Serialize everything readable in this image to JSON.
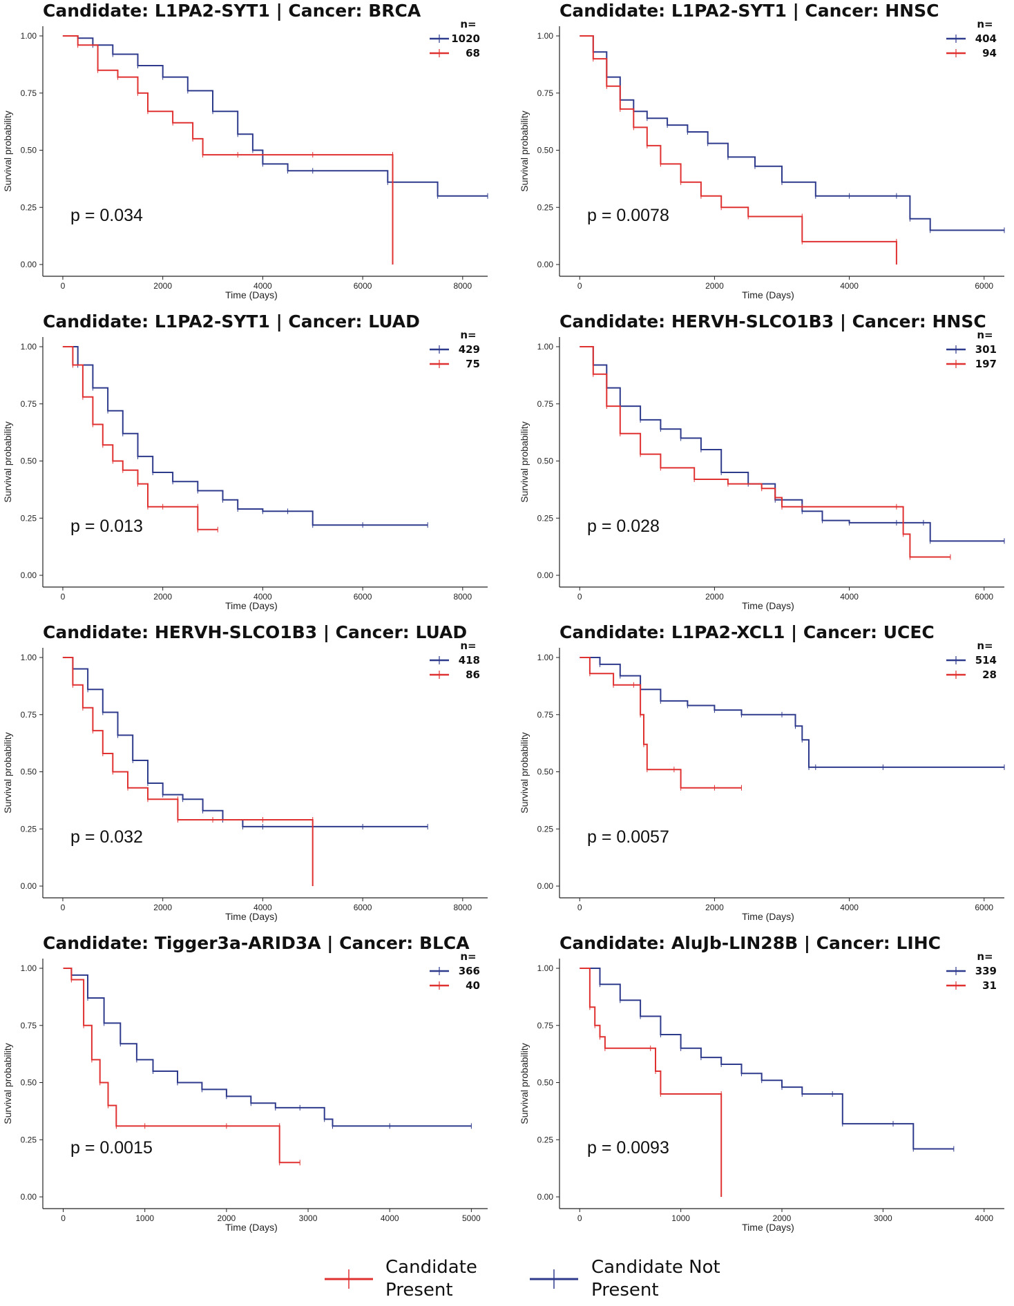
{
  "colors": {
    "present": "#e03131",
    "not_present": "#2e3a8c",
    "axis": "#222222"
  },
  "figure_legend": {
    "present": {
      "line1": "Candidate",
      "line2": "Present"
    },
    "not_present": {
      "line1": "Candidate Not",
      "line2": "Present"
    }
  },
  "chart_data": [
    {
      "type": "line",
      "title": "Candidate: L1PA2-SYT1 | Cancer: BRCA",
      "xlabel": "Time (Days)",
      "ylabel": "Survival probability",
      "xlim": [
        -400,
        8500
      ],
      "ylim": [
        0,
        1
      ],
      "xticks": [
        0,
        2000,
        4000,
        6000,
        8000
      ],
      "yticks": [
        "0.00",
        "0.25",
        "0.50",
        "0.75",
        "1.00"
      ],
      "pvalue": "p = 0.034",
      "legend": {
        "header": "n=",
        "entries": [
          {
            "series": "Candidate Not Present",
            "n": "1020"
          },
          {
            "series": "Candidate Present",
            "n": "68"
          }
        ]
      },
      "series": [
        {
          "name": "Candidate Not Present",
          "color": "#2e3a8c",
          "x": [
            0,
            300,
            600,
            1000,
            1500,
            2000,
            2500,
            3000,
            3500,
            3800,
            4000,
            4500,
            5000,
            6500,
            7500,
            8500
          ],
          "y": [
            1.0,
            0.99,
            0.96,
            0.92,
            0.87,
            0.82,
            0.76,
            0.67,
            0.57,
            0.5,
            0.44,
            0.41,
            0.41,
            0.36,
            0.3,
            0.3
          ]
        },
        {
          "name": "Candidate Present",
          "color": "#e03131",
          "x": [
            0,
            300,
            700,
            1100,
            1500,
            1700,
            2200,
            2600,
            2800,
            3500,
            5000,
            6600,
            6600
          ],
          "y": [
            1.0,
            0.96,
            0.85,
            0.82,
            0.75,
            0.67,
            0.62,
            0.55,
            0.48,
            0.48,
            0.48,
            0.48,
            0.0
          ]
        }
      ]
    },
    {
      "type": "line",
      "title": "Candidate: L1PA2-SYT1 | Cancer: HNSC",
      "xlabel": "Time (Days)",
      "ylabel": "Survival probability",
      "xlim": [
        -300,
        6300
      ],
      "ylim": [
        0,
        1
      ],
      "xticks": [
        0,
        2000,
        4000,
        6000
      ],
      "yticks": [
        "0.00",
        "0.25",
        "0.50",
        "0.75",
        "1.00"
      ],
      "pvalue": "p = 0.0078",
      "legend": {
        "header": "n=",
        "entries": [
          {
            "series": "Candidate Not Present",
            "n": "404"
          },
          {
            "series": "Candidate Present",
            "n": "94"
          }
        ]
      },
      "series": [
        {
          "name": "Candidate Not Present",
          "color": "#2e3a8c",
          "x": [
            0,
            200,
            400,
            600,
            800,
            1000,
            1300,
            1600,
            1900,
            2200,
            2600,
            3000,
            3500,
            4000,
            4700,
            4900,
            5200,
            6300
          ],
          "y": [
            1.0,
            0.93,
            0.82,
            0.72,
            0.67,
            0.64,
            0.61,
            0.58,
            0.53,
            0.47,
            0.43,
            0.36,
            0.3,
            0.3,
            0.3,
            0.2,
            0.15,
            0.15
          ]
        },
        {
          "name": "Candidate Present",
          "color": "#e03131",
          "x": [
            0,
            200,
            400,
            600,
            800,
            1000,
            1200,
            1500,
            1800,
            2100,
            2500,
            3300,
            3300,
            4700,
            4700
          ],
          "y": [
            1.0,
            0.9,
            0.78,
            0.68,
            0.6,
            0.52,
            0.44,
            0.36,
            0.3,
            0.25,
            0.21,
            0.21,
            0.1,
            0.1,
            0.0
          ]
        }
      ]
    },
    {
      "type": "line",
      "title": "Candidate: L1PA2-SYT1 | Cancer: LUAD",
      "xlabel": "Time (Days)",
      "ylabel": "Survival probability",
      "xlim": [
        -400,
        8500
      ],
      "ylim": [
        0,
        1
      ],
      "xticks": [
        0,
        2000,
        4000,
        6000,
        8000
      ],
      "yticks": [
        "0.00",
        "0.25",
        "0.50",
        "0.75",
        "1.00"
      ],
      "pvalue": "p = 0.013",
      "legend": {
        "header": "n=",
        "entries": [
          {
            "series": "Candidate Not Present",
            "n": "429"
          },
          {
            "series": "Candidate Present",
            "n": "75"
          }
        ]
      },
      "series": [
        {
          "name": "Candidate Not Present",
          "color": "#2e3a8c",
          "x": [
            0,
            300,
            600,
            900,
            1200,
            1500,
            1800,
            2200,
            2700,
            3200,
            3500,
            4000,
            4500,
            5000,
            6000,
            7300
          ],
          "y": [
            1.0,
            0.92,
            0.82,
            0.72,
            0.62,
            0.52,
            0.45,
            0.41,
            0.37,
            0.33,
            0.29,
            0.28,
            0.28,
            0.22,
            0.22,
            0.22
          ]
        },
        {
          "name": "Candidate Present",
          "color": "#e03131",
          "x": [
            0,
            200,
            400,
            600,
            800,
            1000,
            1200,
            1500,
            1700,
            2000,
            2700,
            2700,
            3100
          ],
          "y": [
            1.0,
            0.92,
            0.78,
            0.66,
            0.57,
            0.5,
            0.46,
            0.4,
            0.3,
            0.3,
            0.3,
            0.2,
            0.2
          ]
        }
      ]
    },
    {
      "type": "line",
      "title": "Candidate: HERVH-SLCO1B3 | Cancer: HNSC",
      "xlabel": "Time (Days)",
      "ylabel": "Survival probability",
      "xlim": [
        -300,
        6300
      ],
      "ylim": [
        0,
        1
      ],
      "xticks": [
        0,
        2000,
        4000,
        6000
      ],
      "yticks": [
        "0.00",
        "0.25",
        "0.50",
        "0.75",
        "1.00"
      ],
      "pvalue": "p = 0.028",
      "legend": {
        "header": "n=",
        "entries": [
          {
            "series": "Candidate Not Present",
            "n": "301"
          },
          {
            "series": "Candidate Present",
            "n": "197"
          }
        ]
      },
      "series": [
        {
          "name": "Candidate Not Present",
          "color": "#2e3a8c",
          "x": [
            0,
            200,
            400,
            600,
            900,
            1200,
            1500,
            1800,
            2100,
            2500,
            2900,
            3300,
            3600,
            4000,
            4700,
            5100,
            5200,
            6300
          ],
          "y": [
            1.0,
            0.92,
            0.82,
            0.74,
            0.68,
            0.64,
            0.6,
            0.55,
            0.45,
            0.4,
            0.33,
            0.28,
            0.24,
            0.23,
            0.23,
            0.23,
            0.15,
            0.15
          ]
        },
        {
          "name": "Candidate Present",
          "color": "#e03131",
          "x": [
            0,
            200,
            400,
            600,
            900,
            1200,
            1700,
            2200,
            2700,
            2900,
            3000,
            3300,
            4700,
            4800,
            4900,
            5500
          ],
          "y": [
            1.0,
            0.88,
            0.74,
            0.62,
            0.53,
            0.47,
            0.42,
            0.4,
            0.38,
            0.34,
            0.3,
            0.3,
            0.3,
            0.18,
            0.08,
            0.08
          ]
        }
      ]
    },
    {
      "type": "line",
      "title": "Candidate: HERVH-SLCO1B3 | Cancer: LUAD",
      "xlabel": "Time (Days)",
      "ylabel": "Survival probability",
      "xlim": [
        -400,
        8500
      ],
      "ylim": [
        0,
        1
      ],
      "xticks": [
        0,
        2000,
        4000,
        6000,
        8000
      ],
      "yticks": [
        "0.00",
        "0.25",
        "0.50",
        "0.75",
        "1.00"
      ],
      "pvalue": "p = 0.032",
      "legend": {
        "header": "n=",
        "entries": [
          {
            "series": "Candidate Not Present",
            "n": "418"
          },
          {
            "series": "Candidate Present",
            "n": "86"
          }
        ]
      },
      "series": [
        {
          "name": "Candidate Not Present",
          "color": "#2e3a8c",
          "x": [
            0,
            200,
            500,
            800,
            1100,
            1400,
            1700,
            2000,
            2400,
            2800,
            3200,
            3600,
            4000,
            5000,
            6000,
            7300
          ],
          "y": [
            1.0,
            0.95,
            0.86,
            0.76,
            0.66,
            0.55,
            0.45,
            0.4,
            0.38,
            0.33,
            0.29,
            0.26,
            0.26,
            0.26,
            0.26,
            0.26
          ]
        },
        {
          "name": "Candidate Present",
          "color": "#e03131",
          "x": [
            0,
            200,
            400,
            600,
            800,
            1000,
            1300,
            1700,
            2300,
            2300,
            3000,
            4000,
            5000,
            5000
          ],
          "y": [
            1.0,
            0.88,
            0.78,
            0.68,
            0.58,
            0.5,
            0.43,
            0.38,
            0.38,
            0.29,
            0.29,
            0.29,
            0.29,
            0.0
          ]
        }
      ]
    },
    {
      "type": "line",
      "title": "Candidate: L1PA2-XCL1 | Cancer: UCEC",
      "xlabel": "Time (Days)",
      "ylabel": "Survival probability",
      "xlim": [
        -300,
        6300
      ],
      "ylim": [
        0,
        1
      ],
      "xticks": [
        0,
        2000,
        4000,
        6000
      ],
      "yticks": [
        "0.00",
        "0.25",
        "0.50",
        "0.75",
        "1.00"
      ],
      "pvalue": "p = 0.0057",
      "legend": {
        "header": "n=",
        "entries": [
          {
            "series": "Candidate Not Present",
            "n": "514"
          },
          {
            "series": "Candidate Present",
            "n": "28"
          }
        ]
      },
      "series": [
        {
          "name": "Candidate Not Present",
          "color": "#2e3a8c",
          "x": [
            0,
            300,
            600,
            900,
            1200,
            1600,
            2000,
            2400,
            3000,
            3200,
            3300,
            3400,
            3500,
            4500,
            6300
          ],
          "y": [
            1.0,
            0.97,
            0.92,
            0.86,
            0.81,
            0.79,
            0.77,
            0.75,
            0.75,
            0.7,
            0.64,
            0.52,
            0.52,
            0.52,
            0.52
          ]
        },
        {
          "name": "Candidate Present",
          "color": "#e03131",
          "x": [
            0,
            150,
            500,
            800,
            900,
            950,
            1000,
            1400,
            1500,
            2000,
            2400
          ],
          "y": [
            1.0,
            0.93,
            0.88,
            0.88,
            0.75,
            0.62,
            0.51,
            0.51,
            0.43,
            0.43,
            0.43
          ]
        }
      ]
    },
    {
      "type": "line",
      "title": "Candidate: Tigger3a-ARID3A | Cancer: BLCA",
      "xlabel": "Time (Days)",
      "ylabel": "Survival probability",
      "xlim": [
        -250,
        5200
      ],
      "ylim": [
        0,
        1
      ],
      "xticks": [
        0,
        1000,
        2000,
        3000,
        4000,
        5000
      ],
      "yticks": [
        "0.00",
        "0.25",
        "0.50",
        "0.75",
        "1.00"
      ],
      "pvalue": "p = 0.0015",
      "legend": {
        "header": "n=",
        "entries": [
          {
            "series": "Candidate Not Present",
            "n": "366"
          },
          {
            "series": "Candidate Present",
            "n": "40"
          }
        ]
      },
      "series": [
        {
          "name": "Candidate Not Present",
          "color": "#2e3a8c",
          "x": [
            0,
            100,
            300,
            500,
            700,
            900,
            1100,
            1400,
            1700,
            2000,
            2300,
            2600,
            2900,
            3200,
            3300,
            4000,
            5000
          ],
          "y": [
            1.0,
            0.97,
            0.87,
            0.76,
            0.67,
            0.6,
            0.55,
            0.5,
            0.47,
            0.44,
            0.41,
            0.39,
            0.39,
            0.34,
            0.31,
            0.31,
            0.31
          ]
        },
        {
          "name": "Candidate Present",
          "color": "#e03131",
          "x": [
            0,
            100,
            250,
            350,
            450,
            550,
            650,
            1000,
            2000,
            2650,
            2650,
            2900
          ],
          "y": [
            1.0,
            0.95,
            0.75,
            0.6,
            0.5,
            0.4,
            0.31,
            0.31,
            0.31,
            0.31,
            0.15,
            0.15
          ]
        }
      ]
    },
    {
      "type": "line",
      "title": "Candidate: AluJb-LIN28B | Cancer: LIHC",
      "xlabel": "Time (Days)",
      "ylabel": "Survival probability",
      "xlim": [
        -200,
        4200
      ],
      "ylim": [
        0,
        1
      ],
      "xticks": [
        0,
        1000,
        2000,
        3000,
        4000
      ],
      "yticks": [
        "0.00",
        "0.25",
        "0.50",
        "0.75",
        "1.00"
      ],
      "pvalue": "p = 0.0093",
      "legend": {
        "header": "n=",
        "entries": [
          {
            "series": "Candidate Not Present",
            "n": "339"
          },
          {
            "series": "Candidate Present",
            "n": "31"
          }
        ]
      },
      "series": [
        {
          "name": "Candidate Not Present",
          "color": "#2e3a8c",
          "x": [
            0,
            200,
            400,
            600,
            800,
            1000,
            1200,
            1400,
            1600,
            1800,
            2000,
            2200,
            2500,
            2600,
            3100,
            3300,
            3700
          ],
          "y": [
            1.0,
            0.93,
            0.86,
            0.79,
            0.71,
            0.65,
            0.61,
            0.58,
            0.54,
            0.51,
            0.48,
            0.45,
            0.45,
            0.32,
            0.32,
            0.21,
            0.21
          ]
        },
        {
          "name": "Candidate Present",
          "color": "#e03131",
          "x": [
            0,
            100,
            150,
            200,
            250,
            700,
            750,
            800,
            1400,
            1400
          ],
          "y": [
            1.0,
            0.83,
            0.75,
            0.7,
            0.65,
            0.65,
            0.55,
            0.45,
            0.45,
            0.0
          ]
        }
      ]
    }
  ]
}
